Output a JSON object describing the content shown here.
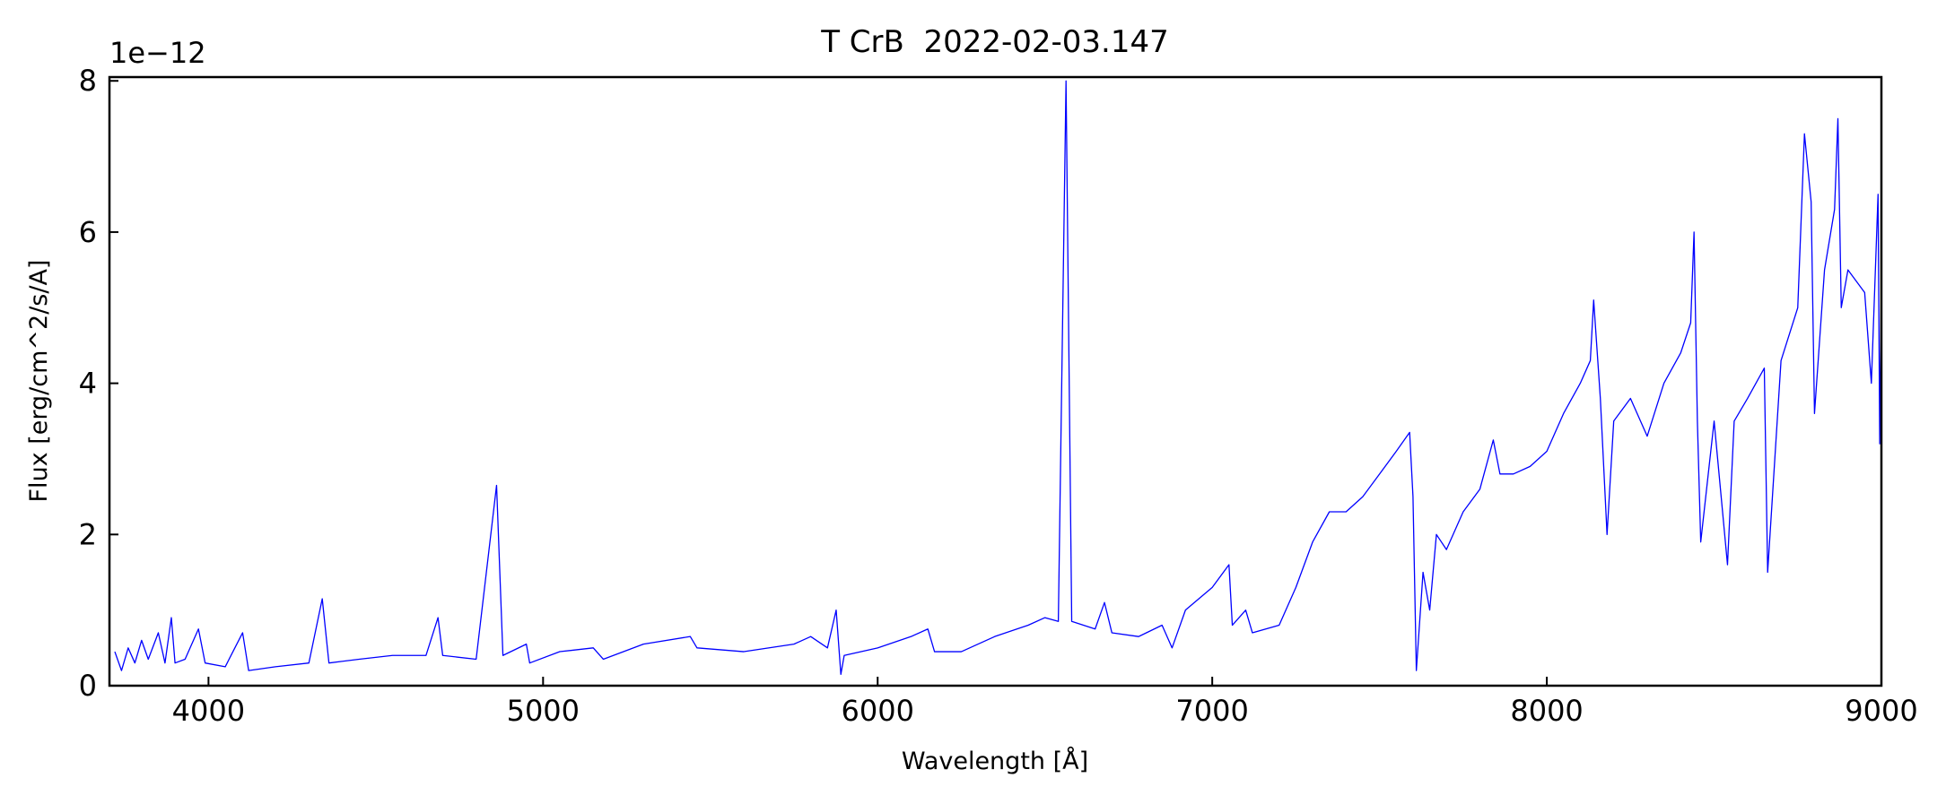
{
  "chart_data": {
    "type": "line",
    "title": "T CrB  2022-02-03.147",
    "x_label": "Wavelength [Å]",
    "y_label": "Flux [erg/cm^2/s/A]",
    "y_offset_label": "1e−12",
    "x": [
      3720,
      3740,
      3760,
      3780,
      3800,
      3820,
      3850,
      3870,
      3889,
      3900,
      3930,
      3970,
      3990,
      4050,
      4102,
      4120,
      4200,
      4300,
      4340,
      4360,
      4450,
      4550,
      4650,
      4686,
      4700,
      4800,
      4861,
      4880,
      4950,
      4960,
      5050,
      5150,
      5180,
      5300,
      5440,
      5460,
      5600,
      5750,
      5800,
      5850,
      5876,
      5890,
      5900,
      6000,
      6100,
      6150,
      6170,
      6250,
      6350,
      6450,
      6500,
      6540,
      6563,
      6580,
      6650,
      6678,
      6700,
      6780,
      6850,
      6880,
      6920,
      7000,
      7050,
      7060,
      7100,
      7120,
      7200,
      7250,
      7300,
      7350,
      7400,
      7450,
      7500,
      7550,
      7590,
      7600,
      7610,
      7630,
      7650,
      7670,
      7700,
      7750,
      7800,
      7840,
      7860,
      7900,
      7950,
      8000,
      8050,
      8100,
      8130,
      8140,
      8160,
      8180,
      8200,
      8250,
      8300,
      8350,
      8400,
      8430,
      8440,
      8450,
      8460,
      8500,
      8540,
      8560,
      8600,
      8650,
      8660,
      8700,
      8750,
      8770,
      8790,
      8800,
      8830,
      8860,
      8870,
      8880,
      8900,
      8950,
      8970,
      8990,
      8995,
      9000
    ],
    "series": [
      {
        "color": "#0000ff",
        "values": [
          0.45,
          0.2,
          0.5,
          0.3,
          0.6,
          0.35,
          0.7,
          0.3,
          0.9,
          0.3,
          0.35,
          0.75,
          0.3,
          0.25,
          0.7,
          0.2,
          0.25,
          0.3,
          1.15,
          0.3,
          0.35,
          0.4,
          0.4,
          0.9,
          0.4,
          0.35,
          2.65,
          0.4,
          0.55,
          0.3,
          0.45,
          0.5,
          0.35,
          0.55,
          0.65,
          0.5,
          0.45,
          0.55,
          0.65,
          0.5,
          1.0,
          0.15,
          0.4,
          0.5,
          0.65,
          0.75,
          0.45,
          0.45,
          0.65,
          0.8,
          0.9,
          0.85,
          8.0,
          0.85,
          0.75,
          1.1,
          0.7,
          0.65,
          0.8,
          0.5,
          1.0,
          1.3,
          1.6,
          0.8,
          1.0,
          0.7,
          0.8,
          1.3,
          1.9,
          2.3,
          2.3,
          2.5,
          2.8,
          3.1,
          3.35,
          2.5,
          0.2,
          1.5,
          1.0,
          2.0,
          1.8,
          2.3,
          2.6,
          3.25,
          2.8,
          2.8,
          2.9,
          3.1,
          3.6,
          4.0,
          4.3,
          5.1,
          3.8,
          2.0,
          3.5,
          3.8,
          3.3,
          4.0,
          4.4,
          4.8,
          6.0,
          3.5,
          1.9,
          3.5,
          1.6,
          3.5,
          3.8,
          4.2,
          1.5,
          4.3,
          5.0,
          7.3,
          6.4,
          3.6,
          5.5,
          6.3,
          7.5,
          5.0,
          5.5,
          5.2,
          4.0,
          6.5,
          3.2,
          5.5
        ]
      }
    ],
    "xlim": [
      3704,
      9000
    ],
    "xticks": [
      4000,
      5000,
      6000,
      7000,
      8000,
      9000
    ],
    "ylim": [
      0,
      8.05
    ],
    "yticks": [
      0,
      2,
      4,
      6,
      8
    ]
  }
}
